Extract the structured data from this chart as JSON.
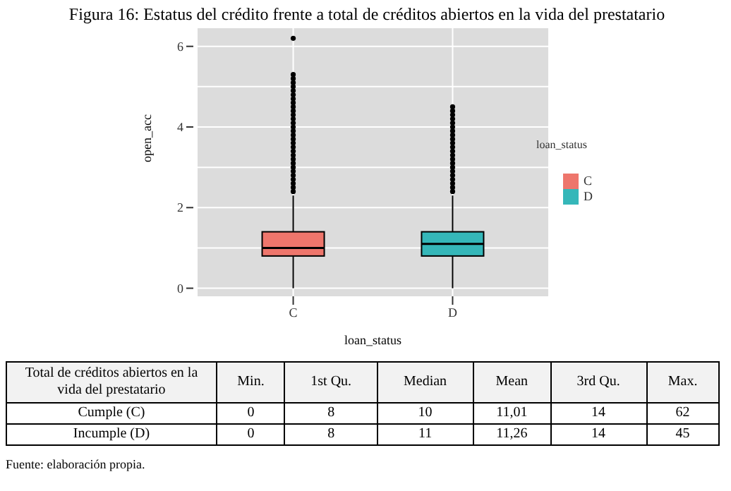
{
  "chart_data": {
    "type": "box",
    "title": "Figura 16: Estatus del crédito frente a total de créditos abiertos en la vida del prestatario",
    "xlabel": "loan_status",
    "ylabel": "open_acc",
    "legend_title": "loan_status",
    "categories": [
      "C",
      "D"
    ],
    "series": [
      {
        "name": "C",
        "color": "#ee766c",
        "boxes": [
          {
            "low": 0,
            "q1": 0.8,
            "median": 1.0,
            "q3": 1.4,
            "high": 2.3,
            "outliers": [
              2.4,
              2.5,
              2.6,
              2.7,
              2.8,
              2.9,
              3.0,
              3.1,
              3.2,
              3.3,
              3.4,
              3.5,
              3.6,
              3.7,
              3.8,
              3.9,
              4.0,
              4.1,
              4.2,
              4.3,
              4.4,
              4.5,
              4.6,
              4.7,
              4.8,
              4.9,
              5.0,
              5.1,
              5.2,
              5.3,
              6.2
            ]
          },
          null
        ]
      },
      {
        "name": "D",
        "color": "#35b7b9",
        "boxes": [
          null,
          {
            "low": 0,
            "q1": 0.8,
            "median": 1.1,
            "q3": 1.4,
            "high": 2.3,
            "outliers": [
              2.4,
              2.5,
              2.6,
              2.7,
              2.8,
              2.9,
              3.0,
              3.1,
              3.2,
              3.3,
              3.4,
              3.5,
              3.6,
              3.7,
              3.8,
              3.9,
              4.0,
              4.1,
              4.2,
              4.3,
              4.4,
              4.5
            ]
          }
        ]
      }
    ],
    "ylim": [
      -0.2,
      6.45
    ],
    "yticks": [
      0,
      {
        "value": 1,
        "label": null
      },
      2,
      {
        "value": 3,
        "label": null
      },
      4,
      {
        "value": 5,
        "label": null
      },
      6
    ],
    "grid": true,
    "legend": "right",
    "annotations": [
      "Total de créditos abiertos en la vida del prestatario",
      "Min.",
      "1st Qu.",
      "Median",
      "Mean",
      "3rd Qu.",
      "Max.",
      "Cumple (C)",
      "0",
      "8",
      "10",
      "11,01",
      "14",
      "62",
      "Incumple (D)",
      "0",
      "8",
      "11",
      "11,26",
      "14",
      "45",
      "Fuente: elaboración propia."
    ]
  }
}
